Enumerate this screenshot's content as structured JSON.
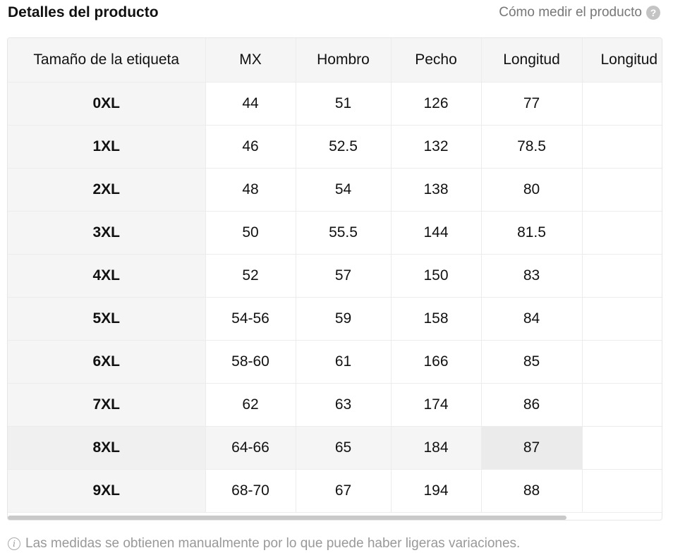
{
  "header": {
    "title": "Detalles del producto",
    "how_to_measure": "Cómo medir el producto",
    "help_glyph": "?"
  },
  "table": {
    "columns": [
      "Tamaño de la etiqueta",
      "MX",
      "Hombro",
      "Pecho",
      "Longitud",
      "Longitud"
    ],
    "rows": [
      [
        "0XL",
        "44",
        "51",
        "126",
        "77",
        ""
      ],
      [
        "1XL",
        "46",
        "52.5",
        "132",
        "78.5",
        ""
      ],
      [
        "2XL",
        "48",
        "54",
        "138",
        "80",
        ""
      ],
      [
        "3XL",
        "50",
        "55.5",
        "144",
        "81.5",
        ""
      ],
      [
        "4XL",
        "52",
        "57",
        "150",
        "83",
        ""
      ],
      [
        "5XL",
        "54-56",
        "59",
        "158",
        "84",
        ""
      ],
      [
        "6XL",
        "58-60",
        "61",
        "166",
        "85",
        ""
      ],
      [
        "7XL",
        "62",
        "63",
        "174",
        "86",
        ""
      ],
      [
        "8XL",
        "64-66",
        "65",
        "184",
        "87",
        ""
      ],
      [
        "9XL",
        "68-70",
        "67",
        "194",
        "88",
        ""
      ]
    ]
  },
  "footer": {
    "note": "Las medidas se obtienen manualmente por lo que puede haber ligeras variaciones.",
    "info_glyph": "i"
  },
  "colors": {
    "header_bg": "#f5f5f5",
    "border": "#ececec",
    "muted_text": "#999999"
  }
}
